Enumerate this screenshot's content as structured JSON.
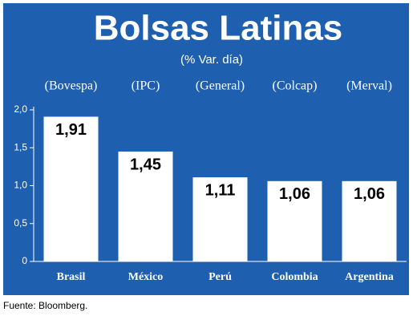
{
  "chart_data": {
    "type": "bar",
    "title": "Bolsas Latinas",
    "subtitle": "(% Var. día)",
    "categories": [
      "Brasil",
      "México",
      "Perú",
      "Colombia",
      "Argentina"
    ],
    "index_names": [
      "(Bovespa)",
      "(IPC)",
      "(General)",
      "(Colcap)",
      "(Merval)"
    ],
    "values": [
      1.91,
      1.45,
      1.11,
      1.06,
      1.06
    ],
    "value_labels": [
      "1,91",
      "1,45",
      "1,11",
      "1,06",
      "1,06"
    ],
    "color": "#ffffff",
    "background": "#1f5fb0",
    "ylim": [
      0,
      2.0
    ],
    "yticks": [
      0,
      {
        "value": 0.5,
        "label": "0,5"
      },
      {
        "value": 1.0,
        "label": "1,0"
      },
      {
        "value": 1.5,
        "label": "1,5"
      },
      {
        "value": 2.0,
        "label": "2,0"
      }
    ],
    "source": "Fuente: Bloomberg."
  }
}
